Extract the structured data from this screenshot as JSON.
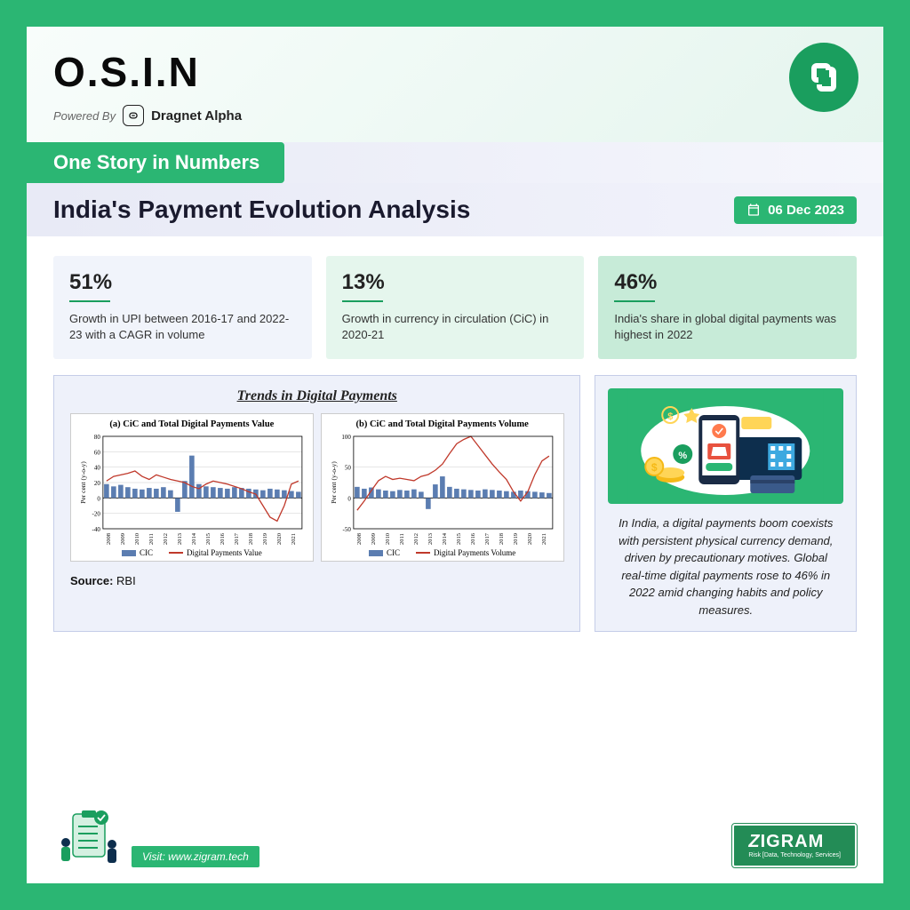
{
  "brand": {
    "name": "O.S.I.N",
    "powered_label": "Powered By",
    "powered_app": "Dragnet Alpha"
  },
  "tagline": "One Story in Numbers",
  "title": "India's Payment Evolution Analysis",
  "date": "06 Dec 2023",
  "accent_color": "#2bb673",
  "stats": [
    {
      "value": "51%",
      "desc": "Growth in UPI between 2016-17 and 2022-23 with a CAGR in volume",
      "bg": "#f1f4fb"
    },
    {
      "value": "13%",
      "desc": "Growth in currency in circulation (CiC) in 2020-21",
      "bg": "#e5f6ed"
    },
    {
      "value": "46%",
      "desc": "India's share in global digital payments was highest in 2022",
      "bg": "#c7ebd8"
    }
  ],
  "chart_section": {
    "title": "Trends in Digital Payments",
    "source_label": "Source:",
    "source_value": "RBI",
    "x_labels": [
      "2008",
      "2009",
      "2010",
      "2011",
      "2012",
      "2013",
      "2014",
      "2015",
      "2016",
      "2017",
      "2018",
      "2019",
      "2020",
      "2021"
    ],
    "chart_a": {
      "title": "(a) CiC and Total Digital Payments Value",
      "ylabel": "Per cent (y-o-y)",
      "ylim": [
        -40,
        80
      ],
      "ytick_step": 20,
      "bar_color": "#5b7db1",
      "line_color": "#c0392b",
      "bar_legend": "CIC",
      "line_legend": "Digital Payments Value",
      "bars": [
        18,
        15,
        17,
        14,
        12,
        11,
        13,
        12,
        14,
        10,
        -18,
        22,
        55,
        18,
        15,
        14,
        13,
        12,
        14,
        13,
        12,
        11,
        10,
        12,
        11,
        10,
        9,
        8
      ],
      "line": [
        22,
        28,
        30,
        32,
        35,
        28,
        24,
        30,
        27,
        24,
        22,
        20,
        15,
        12,
        18,
        22,
        20,
        18,
        15,
        12,
        8,
        5,
        -10,
        -25,
        -30,
        -10,
        18,
        22
      ]
    },
    "chart_b": {
      "title": "(b) CiC and Total Digital Payments Volume",
      "ylabel": "Per cent (y-o-y)",
      "ylim": [
        -50,
        100
      ],
      "ytick_step": 50,
      "bar_color": "#5b7db1",
      "line_color": "#c0392b",
      "bar_legend": "CIC",
      "line_legend": "Digital Payments Volume",
      "bars": [
        18,
        15,
        17,
        14,
        12,
        11,
        13,
        12,
        14,
        10,
        -18,
        22,
        35,
        18,
        15,
        14,
        13,
        12,
        14,
        13,
        12,
        11,
        10,
        12,
        11,
        10,
        9,
        8
      ],
      "line": [
        -20,
        -5,
        12,
        28,
        35,
        30,
        32,
        30,
        28,
        35,
        38,
        45,
        55,
        72,
        88,
        95,
        100,
        85,
        70,
        55,
        42,
        30,
        10,
        -5,
        10,
        38,
        60,
        68
      ]
    }
  },
  "info": {
    "text": "In India, a digital payments boom coexists with persistent physical currency demand, driven by precautionary motives. Global real-time digital payments rose to 46% in 2022 amid changing habits and policy measures."
  },
  "footer": {
    "visit": "Visit: www.zigram.tech",
    "logo_name": "ZIGRAM",
    "logo_sub": "Risk [Data, Technology, Services]"
  }
}
